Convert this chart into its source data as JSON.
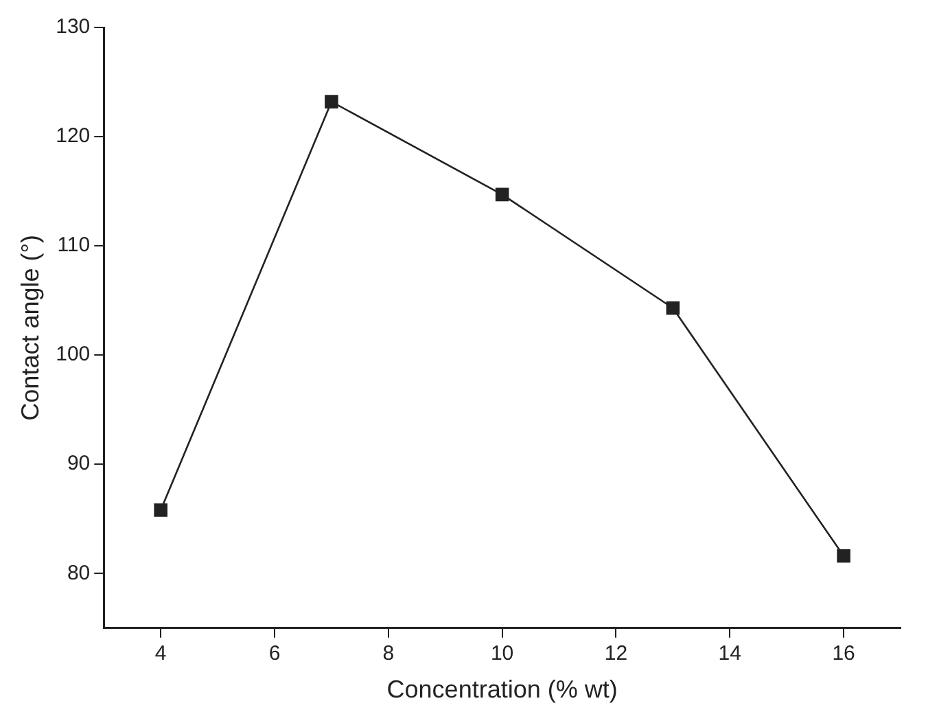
{
  "chart_data": {
    "type": "line",
    "xlabel": "Concentration (% wt)",
    "ylabel": "Contact angle (°)",
    "x": [
      4,
      7,
      10,
      13,
      16
    ],
    "series": [
      {
        "color": "#222222",
        "values": [
          85.8,
          123.2,
          114.7,
          104.3,
          81.6
        ]
      }
    ],
    "xlim": [
      3,
      17
    ],
    "xticks": [
      4,
      6,
      8,
      10,
      12,
      14,
      16
    ],
    "ylim": [
      75,
      130
    ],
    "yticks": [
      80,
      90,
      100,
      110,
      120,
      130
    ],
    "grid": false,
    "legend": false,
    "marker": "square",
    "line_style": "solid"
  }
}
